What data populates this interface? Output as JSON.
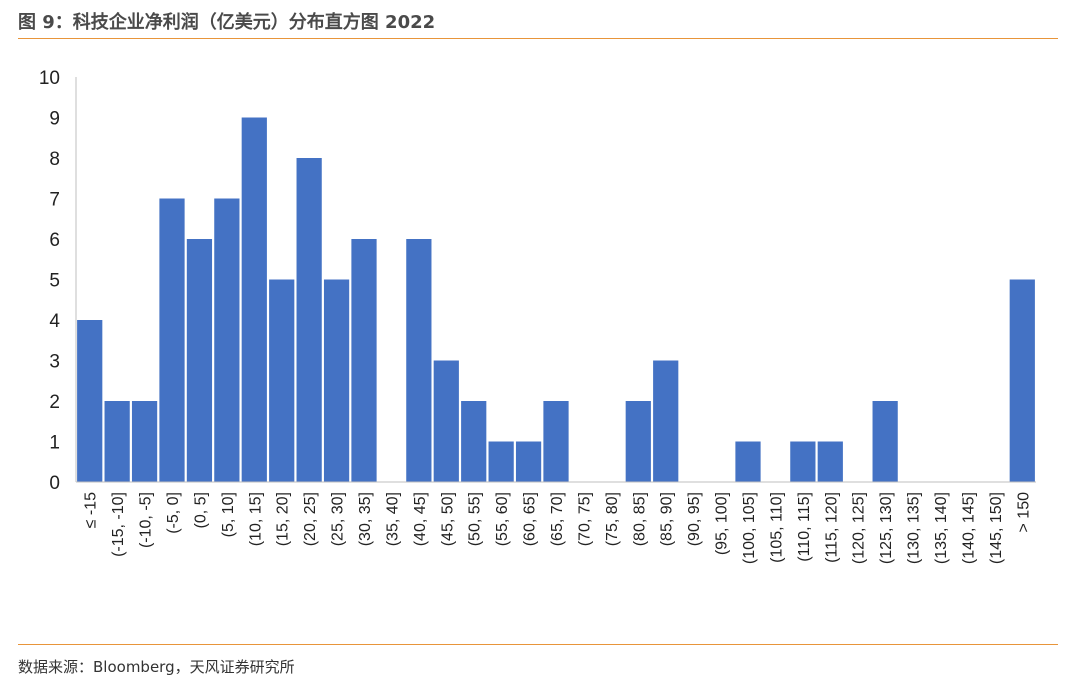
{
  "header": {
    "title": "图 9：科技企业净利润（亿美元）分布直方图 2022"
  },
  "footer": {
    "source": "数据来源：Bloomberg，天风证券研究所"
  },
  "chart_data": {
    "type": "bar",
    "title": "",
    "xlabel": "",
    "ylabel": "",
    "ylim": [
      0,
      10
    ],
    "yticks": [
      0,
      1,
      2,
      3,
      4,
      5,
      6,
      7,
      8,
      9,
      10
    ],
    "grid": false,
    "legend": "none",
    "bar_color": "#4472c4",
    "categories": [
      "≤ -15",
      "(-15, -10]",
      "(-10, -5]",
      "(-5, 0]",
      "(0, 5]",
      "(5, 10]",
      "(10, 15]",
      "(15, 20]",
      "(20, 25]",
      "(25, 30]",
      "(30, 35]",
      "(35, 40]",
      "(40, 45]",
      "(45, 50]",
      "(50, 55]",
      "(55, 60]",
      "(60, 65]",
      "(65, 70]",
      "(70, 75]",
      "(75, 80]",
      "(80, 85]",
      "(85, 90]",
      "(90, 95]",
      "(95, 100]",
      "(100, 105]",
      "(105, 110]",
      "(110, 115]",
      "(115, 120]",
      "(120, 125]",
      "(125, 130]",
      "(130, 135]",
      "(135, 140]",
      "(140, 145]",
      "(145, 150]",
      "> 150"
    ],
    "values": [
      4,
      2,
      2,
      7,
      6,
      7,
      9,
      5,
      8,
      5,
      6,
      0,
      6,
      3,
      2,
      1,
      1,
      2,
      0,
      0,
      2,
      3,
      0,
      0,
      1,
      0,
      1,
      1,
      0,
      2,
      0,
      0,
      0,
      0,
      5
    ]
  }
}
